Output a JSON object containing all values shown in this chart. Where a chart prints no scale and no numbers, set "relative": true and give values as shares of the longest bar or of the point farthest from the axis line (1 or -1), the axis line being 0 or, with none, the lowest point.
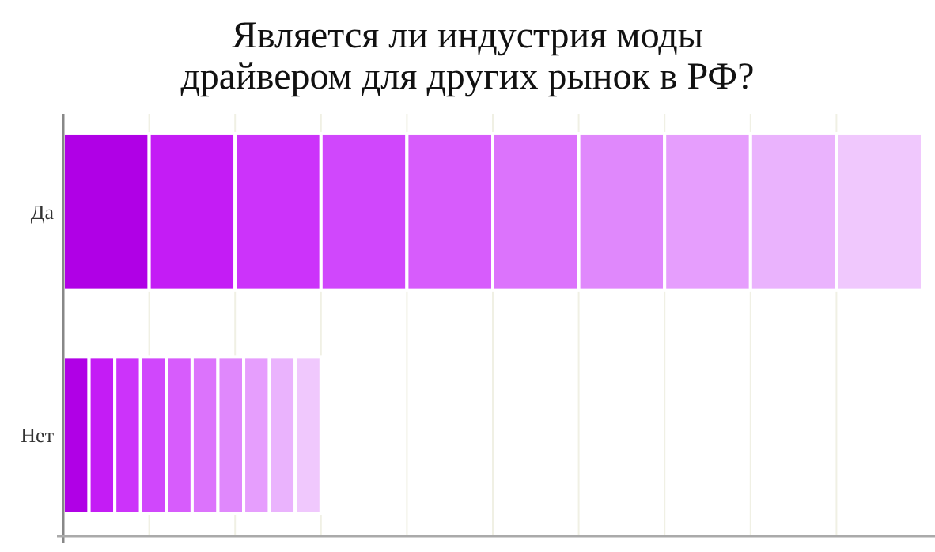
{
  "chart_data": {
    "type": "bar",
    "title": "Является ли индустрия моды\nдрайвером для других рынок в РФ?",
    "orientation": "horizontal",
    "stacked": true,
    "relative": true,
    "grid": "x",
    "categories": [
      "Да",
      "Нет"
    ],
    "series": [
      {
        "color": "#b000e6",
        "values": [
          0.1,
          0.03
        ]
      },
      {
        "color": "#c41cf5",
        "values": [
          0.1,
          0.03
        ]
      },
      {
        "color": "#cc33fa",
        "values": [
          0.1,
          0.03
        ]
      },
      {
        "color": "#d047fc",
        "values": [
          0.1,
          0.03
        ]
      },
      {
        "color": "#d75cfc",
        "values": [
          0.1,
          0.03
        ]
      },
      {
        "color": "#dc73fc",
        "values": [
          0.1,
          0.03
        ]
      },
      {
        "color": "#e088fc",
        "values": [
          0.1,
          0.03
        ]
      },
      {
        "color": "#e69efd",
        "values": [
          0.1,
          0.03
        ]
      },
      {
        "color": "#eab3fd",
        "values": [
          0.1,
          0.03
        ]
      },
      {
        "color": "#f0c8fd",
        "values": [
          0.1,
          0.03
        ]
      }
    ]
  }
}
